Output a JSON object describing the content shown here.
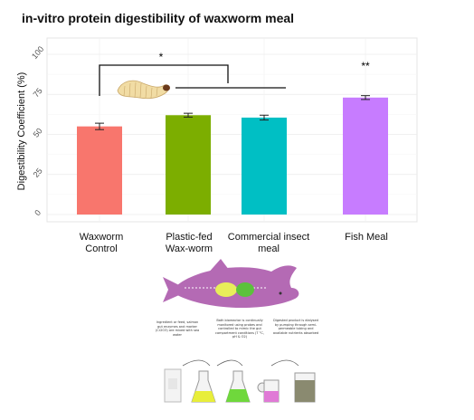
{
  "chart_data": {
    "type": "bar",
    "title": "in-vitro protein digestibility of waxworm meal",
    "ylabel": "Digestibility Coefficient (%)",
    "xlabel": "",
    "categories": [
      "Waxworm\nControl",
      "Plastic-fed\nWax-worm",
      "Commercial insect\nmeal",
      "Fish Meal"
    ],
    "values": [
      55,
      62,
      60.5,
      73
    ],
    "errors": [
      2,
      1.2,
      1.5,
      1.2
    ],
    "colors": [
      "#F8766D",
      "#7CAE00",
      "#00BFC4",
      "#C77CFF"
    ],
    "ylim": [
      0,
      100
    ],
    "yticks": [
      "0",
      "25",
      "50",
      "75",
      "100"
    ],
    "grid": true,
    "annotations": [
      {
        "text": "*",
        "label": "significance-bracket"
      },
      {
        "text": "**",
        "label": "fish-meal-significance"
      }
    ]
  },
  "diagram": {
    "captions": [
      "Ingredient or feed, salmon gut enzymes and marker (Cr2O3) are mixed with sea water",
      "Bath bioreactor is continually monitored using probes and controlled to mimic the gut compartment conditions (T °C, pH & O2)",
      "Digested product is dialysed by pumping through semi-permeable tubing and available nutrients absorbed"
    ]
  }
}
